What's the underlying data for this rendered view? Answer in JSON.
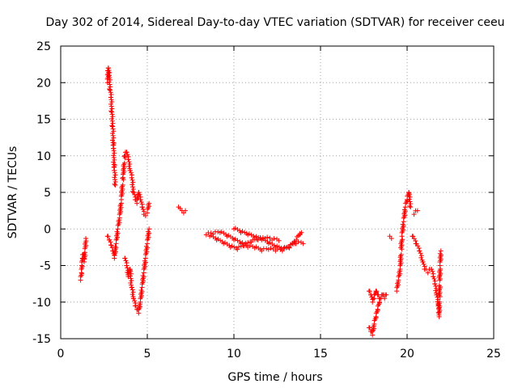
{
  "chart_data": {
    "type": "scatter",
    "title": "Day 302 of 2014, Sidereal Day-to-day VTEC variation (SDTVAR) for receiver ceeu",
    "xlabel": "GPS time / hours",
    "ylabel": "SDTVAR / TECUs",
    "xlim": [
      0,
      25
    ],
    "ylim": [
      -15,
      25
    ],
    "grid": true,
    "marker": "+",
    "marker_color": "#ff0000",
    "x_ticks": [
      0,
      5,
      10,
      15,
      20,
      25
    ],
    "y_ticks": [
      -15,
      -10,
      -5,
      0,
      5,
      10,
      15,
      20,
      25
    ],
    "series": [
      {
        "name": "SDTVAR",
        "segments": [
          [
            [
              1.15,
              -7.0
            ],
            [
              1.2,
              -6.0
            ],
            [
              1.22,
              -5.0
            ],
            [
              1.25,
              -4.0
            ],
            [
              1.3,
              -3.5
            ],
            [
              1.35,
              -4.5
            ],
            [
              1.4,
              -3.2
            ],
            [
              1.45,
              -1.3
            ]
          ],
          [
            [
              2.7,
              20.0
            ],
            [
              2.75,
              22.0
            ],
            [
              2.8,
              21.0
            ],
            [
              2.85,
              19.0
            ],
            [
              2.9,
              18.0
            ],
            [
              2.95,
              16.0
            ],
            [
              3.0,
              14.0
            ],
            [
              3.05,
              11.0
            ],
            [
              3.1,
              8.0
            ],
            [
              3.15,
              6.0
            ]
          ],
          [
            [
              2.7,
              -1.0
            ],
            [
              2.8,
              -1.5
            ],
            [
              2.9,
              -2.2
            ],
            [
              3.0,
              -3.0
            ],
            [
              3.1,
              -4.0
            ],
            [
              3.2,
              -2.0
            ],
            [
              3.3,
              0.0
            ],
            [
              3.4,
              1.5
            ],
            [
              3.5,
              4.0
            ],
            [
              3.6,
              7.0
            ],
            [
              3.7,
              10.0
            ],
            [
              3.8,
              10.5
            ],
            [
              3.9,
              9.5
            ],
            [
              4.0,
              8.0
            ],
            [
              4.1,
              7.0
            ],
            [
              4.2,
              5.0
            ],
            [
              4.3,
              4.0
            ],
            [
              4.4,
              3.5
            ],
            [
              4.5,
              5.0
            ],
            [
              4.6,
              4.0
            ],
            [
              4.7,
              3.0
            ],
            [
              4.8,
              2.0
            ],
            [
              4.9,
              1.8
            ],
            [
              5.0,
              2.2
            ],
            [
              5.1,
              3.5
            ]
          ],
          [
            [
              3.7,
              -4.0
            ],
            [
              3.8,
              -5.0
            ],
            [
              3.9,
              -6.5
            ],
            [
              4.0,
              -5.5
            ],
            [
              4.1,
              -8.0
            ],
            [
              4.2,
              -9.5
            ],
            [
              4.3,
              -10.5
            ],
            [
              4.4,
              -11.0
            ],
            [
              4.5,
              -11.5
            ],
            [
              4.6,
              -10.0
            ],
            [
              4.7,
              -8.0
            ],
            [
              4.8,
              -6.0
            ],
            [
              4.9,
              -4.0
            ],
            [
              5.0,
              -2.0
            ],
            [
              5.1,
              0.0
            ]
          ],
          [
            [
              6.8,
              3.0
            ],
            [
              6.9,
              2.8
            ],
            [
              7.0,
              2.5
            ],
            [
              7.1,
              2.2
            ],
            [
              7.2,
              2.5
            ]
          ],
          [
            [
              8.4,
              -0.8
            ],
            [
              8.8,
              -0.7
            ],
            [
              9.2,
              -0.5
            ],
            [
              9.6,
              -1.0
            ],
            [
              10.0,
              -1.5
            ],
            [
              10.4,
              -2.0
            ],
            [
              10.8,
              -2.5
            ],
            [
              11.2,
              -2.6
            ],
            [
              11.6,
              -3.0
            ],
            [
              12.0,
              -2.8
            ],
            [
              12.4,
              -3.0
            ],
            [
              12.8,
              -3.0
            ],
            [
              13.2,
              -2.5
            ],
            [
              13.6,
              -2.0
            ],
            [
              14.0,
              -2.0
            ]
          ],
          [
            [
              8.6,
              -1.0
            ],
            [
              9.0,
              -1.5
            ],
            [
              9.4,
              -2.0
            ],
            [
              9.8,
              -2.5
            ],
            [
              10.2,
              -2.8
            ],
            [
              10.6,
              -2.3
            ],
            [
              11.0,
              -1.8
            ],
            [
              11.4,
              -1.5
            ],
            [
              11.8,
              -1.3
            ],
            [
              12.2,
              -1.5
            ],
            [
              12.6,
              -1.6
            ]
          ],
          [
            [
              10.0,
              0.0
            ],
            [
              10.4,
              -0.5
            ],
            [
              10.8,
              -0.8
            ],
            [
              11.2,
              -1.2
            ],
            [
              11.6,
              -1.5
            ],
            [
              12.0,
              -2.0
            ],
            [
              12.4,
              -2.5
            ],
            [
              12.8,
              -2.8
            ],
            [
              13.2,
              -2.6
            ],
            [
              13.6,
              -1.5
            ],
            [
              13.9,
              -0.5
            ]
          ],
          [
            [
              17.8,
              -13.5
            ],
            [
              17.9,
              -14.0
            ],
            [
              18.0,
              -14.5
            ],
            [
              18.1,
              -13.0
            ],
            [
              18.2,
              -12.0
            ],
            [
              18.3,
              -11.0
            ],
            [
              18.4,
              -10.0
            ],
            [
              18.5,
              -9.5
            ],
            [
              18.6,
              -9.0
            ],
            [
              18.7,
              -9.5
            ],
            [
              18.8,
              -9.0
            ]
          ],
          [
            [
              17.8,
              -8.5
            ],
            [
              17.9,
              -9.0
            ],
            [
              18.0,
              -10.0
            ],
            [
              18.1,
              -9.5
            ],
            [
              18.2,
              -8.5
            ],
            [
              18.3,
              -9.0
            ],
            [
              18.4,
              -9.5
            ]
          ],
          [
            [
              19.0,
              -1.0
            ],
            [
              19.1,
              -1.3
            ]
          ],
          [
            [
              19.4,
              -8.5
            ],
            [
              19.5,
              -7.0
            ],
            [
              19.6,
              -5.5
            ],
            [
              19.7,
              -1.0
            ],
            [
              19.8,
              1.0
            ],
            [
              19.9,
              3.0
            ],
            [
              20.0,
              4.0
            ],
            [
              20.1,
              5.0
            ],
            [
              20.2,
              3.0
            ]
          ],
          [
            [
              20.3,
              -1.0
            ],
            [
              20.5,
              -2.0
            ],
            [
              20.7,
              -3.0
            ],
            [
              20.9,
              -4.5
            ],
            [
              21.0,
              -5.5
            ],
            [
              21.2,
              -6.0
            ],
            [
              21.4,
              -5.5
            ],
            [
              21.5,
              -6.5
            ],
            [
              21.6,
              -7.5
            ],
            [
              21.7,
              -9.0
            ],
            [
              21.8,
              -10.5
            ],
            [
              21.85,
              -12.0
            ],
            [
              21.9,
              -5.0
            ],
            [
              21.95,
              -3.0
            ]
          ],
          [
            [
              20.4,
              2.0
            ],
            [
              20.6,
              2.5
            ]
          ]
        ]
      }
    ]
  }
}
